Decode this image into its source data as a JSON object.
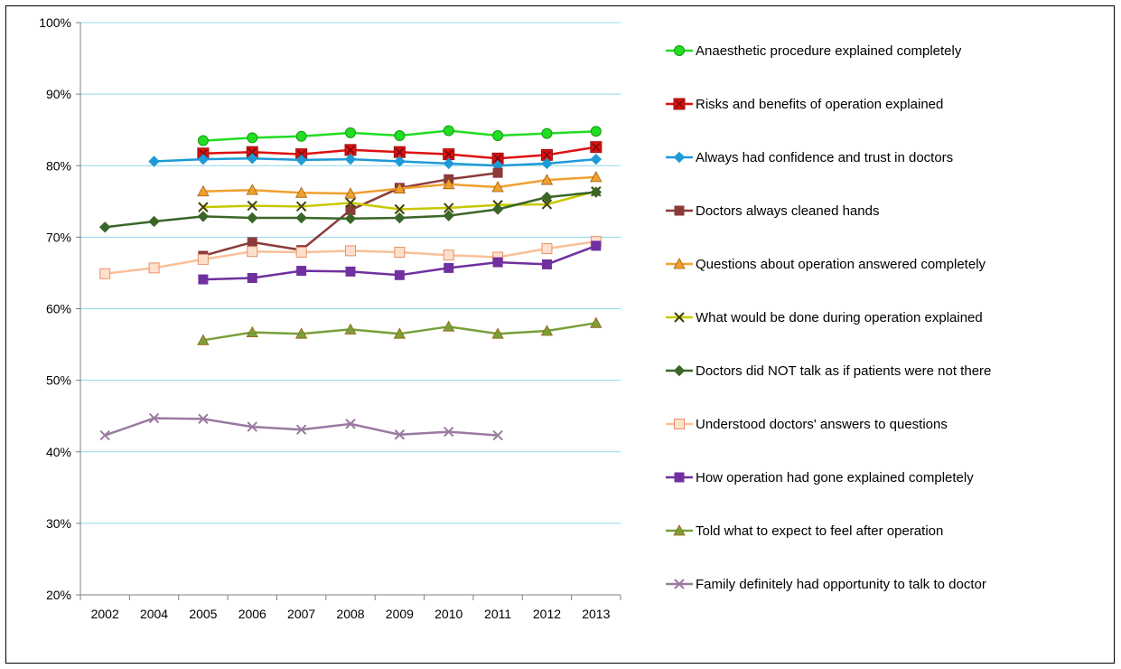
{
  "chart_data": {
    "type": "line",
    "categories": [
      "2002",
      "2004",
      "2005",
      "2006",
      "2007",
      "2008",
      "2009",
      "2010",
      "2011",
      "2012",
      "2013"
    ],
    "ylim": [
      20,
      100
    ],
    "y_ticks": [
      "20%",
      "30%",
      "40%",
      "50%",
      "60%",
      "70%",
      "80%",
      "90%",
      "100%"
    ],
    "grid": "horizontal",
    "legend_position": "right",
    "series": [
      {
        "name": "Anaesthetic procedure explained completely",
        "color": "#22dd22",
        "marker": "circle",
        "values": [
          null,
          null,
          83.5,
          83.9,
          84.1,
          84.6,
          84.2,
          84.9,
          84.2,
          84.5,
          84.8
        ]
      },
      {
        "name": "Risks and benefits of operation explained",
        "color": "#dd1111",
        "marker": "square-x",
        "values": [
          null,
          null,
          81.7,
          81.9,
          81.6,
          82.2,
          81.9,
          81.6,
          81.0,
          81.5,
          82.6
        ]
      },
      {
        "name": "Always had confidence and trust in doctors",
        "color": "#1e9ad6",
        "marker": "diamond",
        "values": [
          null,
          80.6,
          80.9,
          81.0,
          80.8,
          80.9,
          80.6,
          80.3,
          80.0,
          80.3,
          80.9
        ]
      },
      {
        "name": "Doctors always cleaned hands",
        "color": "#8b3a3a",
        "marker": "square",
        "values": [
          null,
          null,
          67.4,
          69.3,
          68.2,
          73.8,
          76.9,
          78.1,
          79.0,
          null,
          null
        ]
      },
      {
        "name": "Questions about operation answered completely",
        "color": "#f0a030",
        "marker": "triangle",
        "values": [
          null,
          null,
          76.4,
          76.6,
          76.2,
          76.1,
          76.8,
          77.4,
          77.0,
          78.0,
          78.4
        ]
      },
      {
        "name": "What would be done during operation explained",
        "color": "#c8c800",
        "marker": "x",
        "values": [
          null,
          null,
          74.2,
          74.4,
          74.3,
          74.8,
          73.9,
          74.1,
          74.5,
          74.6,
          76.4
        ]
      },
      {
        "name": "Doctors did NOT talk as if patients were not there",
        "color": "#3a6628",
        "marker": "diamond",
        "values": [
          71.4,
          72.2,
          72.9,
          72.7,
          72.7,
          72.6,
          72.7,
          73.0,
          73.9,
          75.6,
          76.3
        ]
      },
      {
        "name": "Understood doctors' answers to questions",
        "color": "#f8c09a",
        "marker": "square-open",
        "values": [
          64.9,
          65.7,
          66.9,
          68.0,
          67.9,
          68.1,
          67.9,
          67.5,
          67.2,
          68.4,
          69.4
        ]
      },
      {
        "name": "How operation had gone explained completely",
        "color": "#7030a0",
        "marker": "square",
        "values": [
          null,
          null,
          64.1,
          64.3,
          65.3,
          65.2,
          64.7,
          65.7,
          66.5,
          66.2,
          68.8
        ]
      },
      {
        "name": "Told what to expect to feel after operation",
        "color": "#77a03a",
        "marker": "triangle",
        "values": [
          null,
          null,
          55.6,
          56.7,
          56.5,
          57.1,
          56.5,
          57.5,
          56.5,
          56.9,
          58.0
        ]
      },
      {
        "name": "Family definitely had opportunity to talk to doctor",
        "color": "#9a7aa0",
        "marker": "x",
        "values": [
          42.3,
          44.7,
          44.6,
          43.5,
          43.1,
          43.9,
          42.4,
          42.8,
          42.3,
          null,
          null
        ]
      }
    ]
  }
}
